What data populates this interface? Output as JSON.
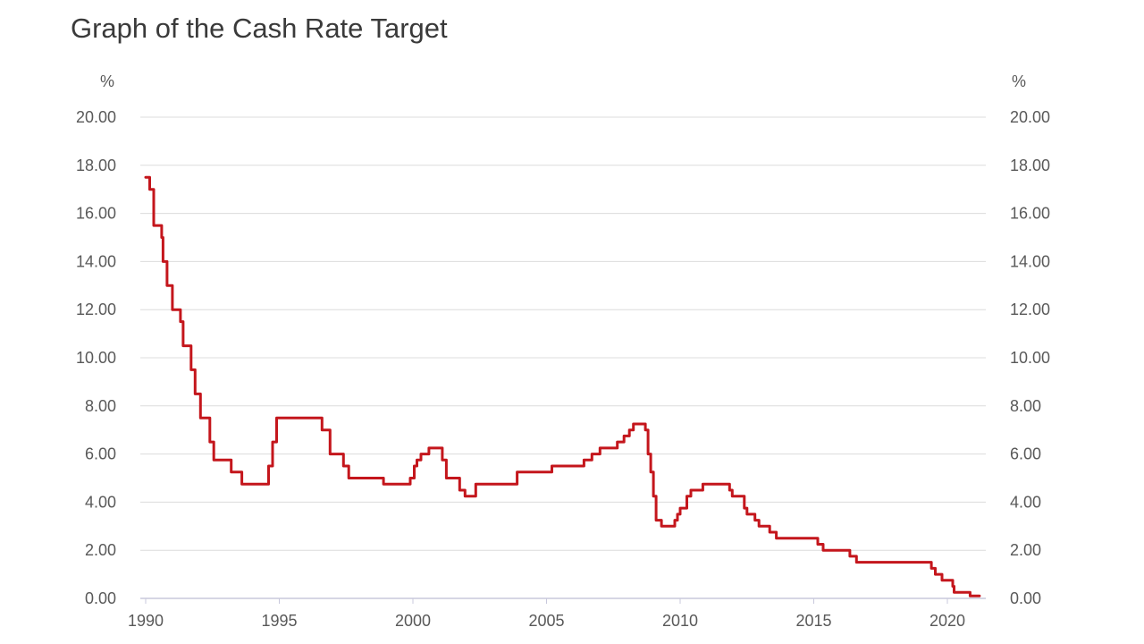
{
  "chart_data": {
    "type": "line",
    "title": "Graph of the Cash Rate Target",
    "y_unit_left": "%",
    "y_unit_right": "%",
    "xlabel": "",
    "ylabel": "",
    "xlim": [
      1990,
      2021.5
    ],
    "ylim": [
      0,
      20
    ],
    "grid": true,
    "x_ticks": [
      "1990",
      "1995",
      "2000",
      "2005",
      "2010",
      "2015",
      "2020"
    ],
    "y_ticks": [
      "0.00",
      "2.00",
      "4.00",
      "6.00",
      "8.00",
      "10.00",
      "12.00",
      "14.00",
      "16.00",
      "18.00",
      "20.00"
    ],
    "series": [
      {
        "color": "#c4161c",
        "points": [
          [
            1990.0,
            17.5
          ],
          [
            1990.15,
            17.0
          ],
          [
            1990.3,
            15.5
          ],
          [
            1990.6,
            15.0
          ],
          [
            1990.65,
            14.0
          ],
          [
            1990.8,
            13.0
          ],
          [
            1991.0,
            12.0
          ],
          [
            1991.3,
            11.5
          ],
          [
            1991.4,
            10.5
          ],
          [
            1991.7,
            9.5
          ],
          [
            1991.85,
            8.5
          ],
          [
            1992.05,
            7.5
          ],
          [
            1992.4,
            6.5
          ],
          [
            1992.55,
            5.75
          ],
          [
            1993.2,
            5.25
          ],
          [
            1993.6,
            4.75
          ],
          [
            1994.6,
            5.5
          ],
          [
            1994.75,
            6.5
          ],
          [
            1994.9,
            7.5
          ],
          [
            1996.6,
            7.0
          ],
          [
            1996.9,
            6.0
          ],
          [
            1997.4,
            5.5
          ],
          [
            1997.6,
            5.0
          ],
          [
            1998.9,
            4.75
          ],
          [
            1999.9,
            5.0
          ],
          [
            2000.05,
            5.5
          ],
          [
            2000.15,
            5.75
          ],
          [
            2000.3,
            6.0
          ],
          [
            2000.6,
            6.25
          ],
          [
            2001.1,
            5.75
          ],
          [
            2001.25,
            5.0
          ],
          [
            2001.75,
            4.5
          ],
          [
            2001.95,
            4.25
          ],
          [
            2002.35,
            4.75
          ],
          [
            2003.9,
            5.25
          ],
          [
            2004.1,
            5.25
          ],
          [
            2005.2,
            5.5
          ],
          [
            2006.4,
            5.75
          ],
          [
            2006.7,
            6.0
          ],
          [
            2007.0,
            6.25
          ],
          [
            2007.65,
            6.5
          ],
          [
            2007.9,
            6.75
          ],
          [
            2008.1,
            7.0
          ],
          [
            2008.25,
            7.25
          ],
          [
            2008.7,
            7.0
          ],
          [
            2008.8,
            6.0
          ],
          [
            2008.9,
            5.25
          ],
          [
            2009.0,
            4.25
          ],
          [
            2009.1,
            3.25
          ],
          [
            2009.3,
            3.0
          ],
          [
            2009.8,
            3.25
          ],
          [
            2009.9,
            3.5
          ],
          [
            2010.0,
            3.75
          ],
          [
            2010.25,
            4.25
          ],
          [
            2010.4,
            4.5
          ],
          [
            2010.85,
            4.75
          ],
          [
            2011.85,
            4.5
          ],
          [
            2011.95,
            4.25
          ],
          [
            2012.4,
            3.75
          ],
          [
            2012.5,
            3.5
          ],
          [
            2012.8,
            3.25
          ],
          [
            2012.95,
            3.0
          ],
          [
            2013.35,
            2.75
          ],
          [
            2013.6,
            2.5
          ],
          [
            2015.15,
            2.25
          ],
          [
            2015.35,
            2.0
          ],
          [
            2016.35,
            1.75
          ],
          [
            2016.6,
            1.5
          ],
          [
            2019.4,
            1.25
          ],
          [
            2019.55,
            1.0
          ],
          [
            2019.8,
            0.75
          ],
          [
            2020.2,
            0.5
          ],
          [
            2020.25,
            0.25
          ],
          [
            2020.85,
            0.1
          ],
          [
            2021.2,
            0.1
          ]
        ]
      }
    ]
  }
}
